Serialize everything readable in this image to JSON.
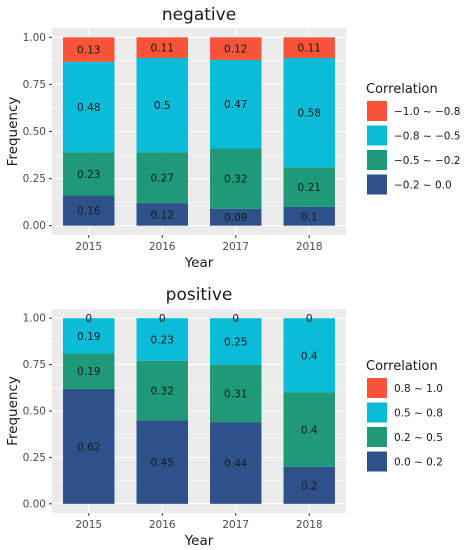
{
  "chart_data": [
    {
      "type": "bar",
      "stacked": true,
      "title": "negative",
      "xlabel": "Year",
      "ylabel": "Frequency",
      "ylim": [
        0,
        1
      ],
      "yticks": [
        "0.00",
        "0.25",
        "0.50",
        "0.75",
        "1.00"
      ],
      "grid": true,
      "legend_position": "right",
      "legend_title": "Correlation",
      "categories": [
        "2015",
        "2016",
        "2017",
        "2018"
      ],
      "series": [
        {
          "name": "−0.2 ~ 0.0",
          "color": "#2d5189",
          "values": [
            0.16,
            0.12,
            0.09,
            0.1
          ],
          "labels": [
            "0.16",
            "0.12",
            "0.09",
            "0.1"
          ]
        },
        {
          "name": "−0.5 ~ −0.2",
          "color": "#1e9a78",
          "values": [
            0.23,
            0.27,
            0.32,
            0.21
          ],
          "labels": [
            "0.23",
            "0.27",
            "0.32",
            "0.21"
          ]
        },
        {
          "name": "−0.8 ~ −0.5",
          "color": "#0bbcd8",
          "values": [
            0.48,
            0.5,
            0.47,
            0.58
          ],
          "labels": [
            "0.48",
            "0.5",
            "0.47",
            "0.58"
          ]
        },
        {
          "name": "−1.0 ~ −0.8",
          "color": "#f7543a",
          "values": [
            0.13,
            0.11,
            0.12,
            0.11
          ],
          "labels": [
            "0.13",
            "0.11",
            "0.12",
            "0.11"
          ]
        }
      ]
    },
    {
      "type": "bar",
      "stacked": true,
      "title": "positive",
      "xlabel": "Year",
      "ylabel": "Frequency",
      "ylim": [
        0,
        1
      ],
      "yticks": [
        "0.00",
        "0.25",
        "0.50",
        "0.75",
        "1.00"
      ],
      "grid": true,
      "legend_position": "right",
      "legend_title": "Correlation",
      "categories": [
        "2015",
        "2016",
        "2017",
        "2018"
      ],
      "series": [
        {
          "name": "0.0 ~ 0.2",
          "color": "#2d5189",
          "values": [
            0.62,
            0.45,
            0.44,
            0.2
          ],
          "labels": [
            "0.62",
            "0.45",
            "0.44",
            "0.2"
          ]
        },
        {
          "name": "0.2 ~ 0.5",
          "color": "#1e9a78",
          "values": [
            0.19,
            0.32,
            0.31,
            0.4
          ],
          "labels": [
            "0.19",
            "0.32",
            "0.31",
            "0.4"
          ]
        },
        {
          "name": "0.5 ~ 0.8",
          "color": "#0bbcd8",
          "values": [
            0.19,
            0.23,
            0.25,
            0.4
          ],
          "labels": [
            "0.19",
            "0.23",
            "0.25",
            "0.4"
          ]
        },
        {
          "name": "0.8 ~ 1.0",
          "color": "#f7543a",
          "values": [
            0,
            0,
            0,
            0
          ],
          "labels": [
            "0",
            "0",
            "0",
            "0"
          ]
        }
      ]
    }
  ]
}
